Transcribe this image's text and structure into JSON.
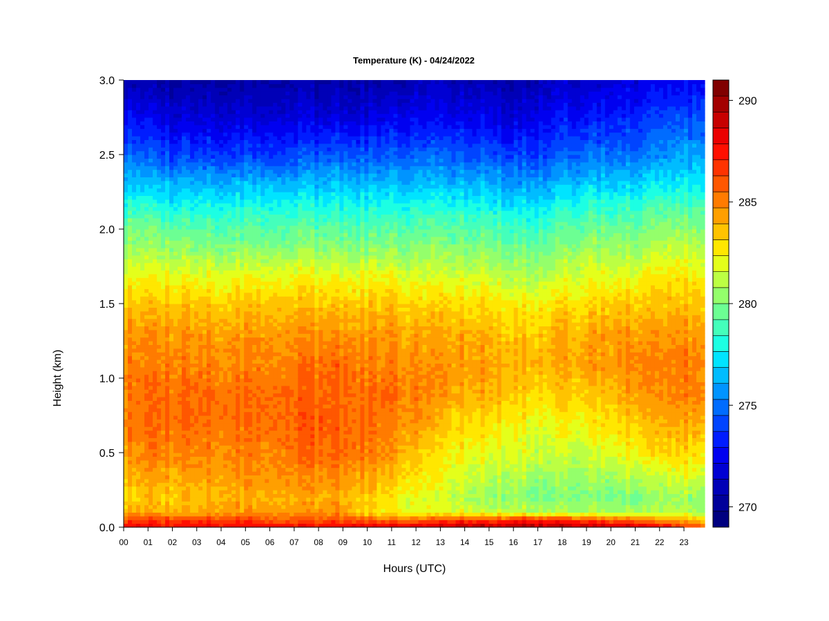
{
  "chart_data": {
    "type": "heatmap",
    "title": "Temperature (K) - 04/24/2022",
    "xlabel": "Hours (UTC)",
    "ylabel": "Height (km)",
    "x_ticks": [
      "00",
      "01",
      "02",
      "03",
      "04",
      "05",
      "06",
      "07",
      "08",
      "09",
      "10",
      "11",
      "12",
      "13",
      "14",
      "15",
      "16",
      "17",
      "18",
      "19",
      "20",
      "21",
      "22",
      "23"
    ],
    "xlim": [
      0,
      23.85
    ],
    "y_ticks": [
      "0.0",
      "0.5",
      "1.0",
      "1.5",
      "2.0",
      "2.5",
      "3.0"
    ],
    "ylim": [
      0,
      3.0
    ],
    "colorbar": {
      "range": [
        269,
        291
      ],
      "ticks": [
        "270",
        "275",
        "280",
        "285",
        "290"
      ],
      "colors": [
        "#000080",
        "#00009a",
        "#0000b7",
        "#0000d3",
        "#0000f0",
        "#001cff",
        "#0044ff",
        "#006cff",
        "#0094ff",
        "#00bcff",
        "#00e4ff",
        "#1cffe3",
        "#44ffbb",
        "#6cff93",
        "#94ff6b",
        "#bcff43",
        "#e4ff1b",
        "#ffe700",
        "#ffc300",
        "#ff9f00",
        "#ff7b00",
        "#ff5700",
        "#ff3300",
        "#ff0f00",
        "#eb0000",
        "#c70000",
        "#a30000",
        "#800000"
      ]
    },
    "z_grid_hours": [
      0,
      1,
      2,
      3,
      4,
      5,
      6,
      7,
      8,
      9,
      10,
      11,
      12,
      13,
      14,
      15,
      16,
      17,
      18,
      19,
      20,
      21,
      22,
      23,
      23.85
    ],
    "z_grid_heights_km": [
      0.0,
      0.05,
      0.1,
      0.2,
      0.3,
      0.5,
      0.7,
      0.9,
      1.1,
      1.3,
      1.5,
      1.7,
      1.9,
      2.1,
      2.3,
      2.5,
      2.75,
      3.0
    ],
    "z_values_K": [
      [
        288.0,
        286.5,
        284.0,
        283.0,
        283.5,
        284.5,
        285.0,
        285.0,
        285.0,
        284.5,
        283.5,
        282.0,
        280.5,
        279.0,
        277.0,
        275.0,
        273.0,
        271.0
      ],
      [
        288.0,
        286.5,
        284.0,
        283.5,
        284.0,
        285.0,
        285.5,
        285.5,
        285.0,
        284.5,
        283.5,
        282.0,
        280.5,
        279.0,
        276.5,
        274.5,
        272.5,
        270.5
      ],
      [
        288.0,
        286.5,
        284.0,
        283.5,
        284.0,
        285.0,
        285.5,
        285.5,
        285.0,
        284.5,
        283.5,
        282.0,
        280.5,
        278.5,
        276.5,
        274.0,
        272.0,
        270.5
      ],
      [
        288.0,
        286.5,
        284.0,
        283.5,
        284.0,
        285.0,
        285.5,
        285.5,
        285.0,
        284.5,
        283.5,
        282.0,
        280.0,
        278.5,
        276.5,
        274.0,
        272.0,
        270.5
      ],
      [
        288.0,
        286.5,
        284.5,
        284.0,
        284.5,
        285.0,
        285.5,
        285.5,
        285.0,
        284.5,
        283.5,
        282.0,
        280.0,
        278.5,
        276.5,
        274.0,
        272.0,
        270.5
      ],
      [
        288.0,
        286.5,
        284.5,
        284.0,
        284.5,
        285.0,
        285.5,
        285.5,
        285.0,
        284.5,
        283.5,
        282.0,
        280.0,
        278.5,
        276.5,
        274.0,
        272.0,
        270.5
      ],
      [
        288.0,
        286.0,
        284.5,
        284.0,
        284.5,
        285.0,
        285.5,
        285.5,
        285.0,
        284.5,
        283.5,
        282.0,
        280.0,
        278.5,
        276.5,
        274.0,
        272.0,
        270.5
      ],
      [
        288.0,
        286.0,
        284.5,
        284.0,
        284.5,
        285.5,
        285.5,
        285.5,
        285.0,
        284.5,
        283.5,
        282.0,
        280.0,
        278.5,
        276.5,
        274.0,
        272.0,
        270.5
      ],
      [
        288.0,
        286.0,
        284.5,
        284.0,
        284.5,
        285.5,
        286.0,
        285.5,
        285.5,
        284.5,
        283.5,
        282.0,
        280.0,
        278.5,
        276.5,
        274.5,
        272.0,
        270.5
      ],
      [
        288.0,
        286.0,
        284.5,
        284.0,
        284.5,
        285.5,
        285.5,
        285.5,
        285.5,
        284.5,
        283.5,
        282.0,
        280.0,
        278.5,
        276.5,
        274.5,
        272.0,
        270.5
      ],
      [
        288.5,
        286.0,
        283.0,
        283.5,
        284.0,
        285.0,
        285.5,
        285.5,
        285.0,
        284.5,
        283.5,
        282.0,
        280.0,
        278.5,
        276.5,
        274.5,
        272.0,
        270.5
      ],
      [
        288.5,
        285.5,
        282.5,
        282.5,
        283.5,
        284.5,
        285.0,
        285.5,
        285.0,
        284.5,
        283.5,
        282.0,
        280.0,
        278.5,
        276.5,
        274.5,
        272.5,
        270.5
      ],
      [
        288.5,
        285.5,
        282.0,
        282.0,
        282.5,
        283.5,
        284.5,
        285.0,
        284.5,
        284.0,
        283.0,
        281.5,
        280.0,
        278.5,
        276.5,
        274.5,
        272.5,
        271.0
      ],
      [
        289.0,
        286.0,
        282.0,
        281.5,
        282.0,
        282.5,
        283.5,
        284.5,
        284.5,
        284.0,
        283.0,
        281.5,
        280.0,
        278.5,
        276.5,
        274.5,
        272.5,
        271.0
      ],
      [
        289.5,
        286.5,
        282.0,
        281.0,
        281.5,
        282.5,
        283.0,
        284.0,
        284.5,
        284.0,
        283.0,
        281.5,
        280.0,
        278.5,
        276.5,
        274.5,
        272.5,
        271.0
      ],
      [
        289.5,
        286.5,
        281.5,
        280.5,
        281.0,
        282.0,
        283.0,
        284.0,
        284.5,
        284.0,
        283.0,
        281.5,
        280.0,
        278.5,
        276.5,
        274.5,
        272.5,
        271.0
      ],
      [
        290.0,
        287.0,
        281.5,
        280.5,
        281.0,
        282.0,
        282.5,
        283.5,
        284.0,
        283.5,
        282.5,
        281.0,
        279.5,
        278.0,
        276.0,
        274.0,
        272.0,
        270.5
      ],
      [
        290.0,
        287.0,
        281.0,
        280.0,
        280.5,
        281.5,
        282.0,
        283.0,
        284.0,
        283.5,
        282.5,
        281.0,
        279.5,
        278.0,
        276.0,
        274.0,
        272.5,
        271.0
      ],
      [
        290.0,
        287.0,
        281.0,
        280.0,
        280.5,
        281.5,
        282.5,
        283.5,
        284.0,
        284.0,
        283.0,
        281.5,
        280.0,
        278.5,
        276.5,
        274.5,
        273.0,
        271.5
      ],
      [
        289.5,
        286.5,
        281.0,
        280.0,
        280.5,
        281.5,
        282.5,
        283.5,
        284.5,
        284.0,
        283.0,
        282.0,
        280.5,
        279.0,
        277.0,
        275.0,
        273.0,
        271.5
      ],
      [
        289.5,
        286.0,
        281.0,
        280.0,
        280.5,
        282.0,
        283.0,
        284.0,
        284.5,
        284.5,
        283.5,
        282.0,
        280.5,
        279.0,
        277.0,
        275.0,
        273.5,
        272.0
      ],
      [
        289.0,
        285.5,
        281.0,
        280.0,
        281.0,
        282.5,
        283.5,
        284.5,
        285.0,
        284.5,
        283.5,
        282.0,
        280.5,
        279.0,
        277.0,
        275.0,
        273.5,
        272.0
      ],
      [
        288.0,
        284.5,
        281.0,
        280.5,
        281.0,
        283.0,
        284.0,
        284.5,
        285.0,
        284.5,
        283.5,
        282.5,
        281.0,
        279.5,
        277.5,
        275.5,
        274.0,
        272.5
      ],
      [
        287.0,
        284.0,
        281.0,
        280.5,
        281.5,
        283.0,
        284.0,
        285.0,
        285.0,
        284.5,
        283.5,
        282.5,
        281.0,
        279.5,
        277.5,
        276.0,
        274.0,
        272.5
      ],
      [
        286.0,
        283.5,
        281.0,
        280.5,
        281.5,
        283.0,
        284.0,
        285.0,
        285.0,
        284.5,
        283.5,
        282.5,
        281.0,
        279.5,
        278.0,
        276.0,
        274.5,
        273.0
      ]
    ]
  }
}
